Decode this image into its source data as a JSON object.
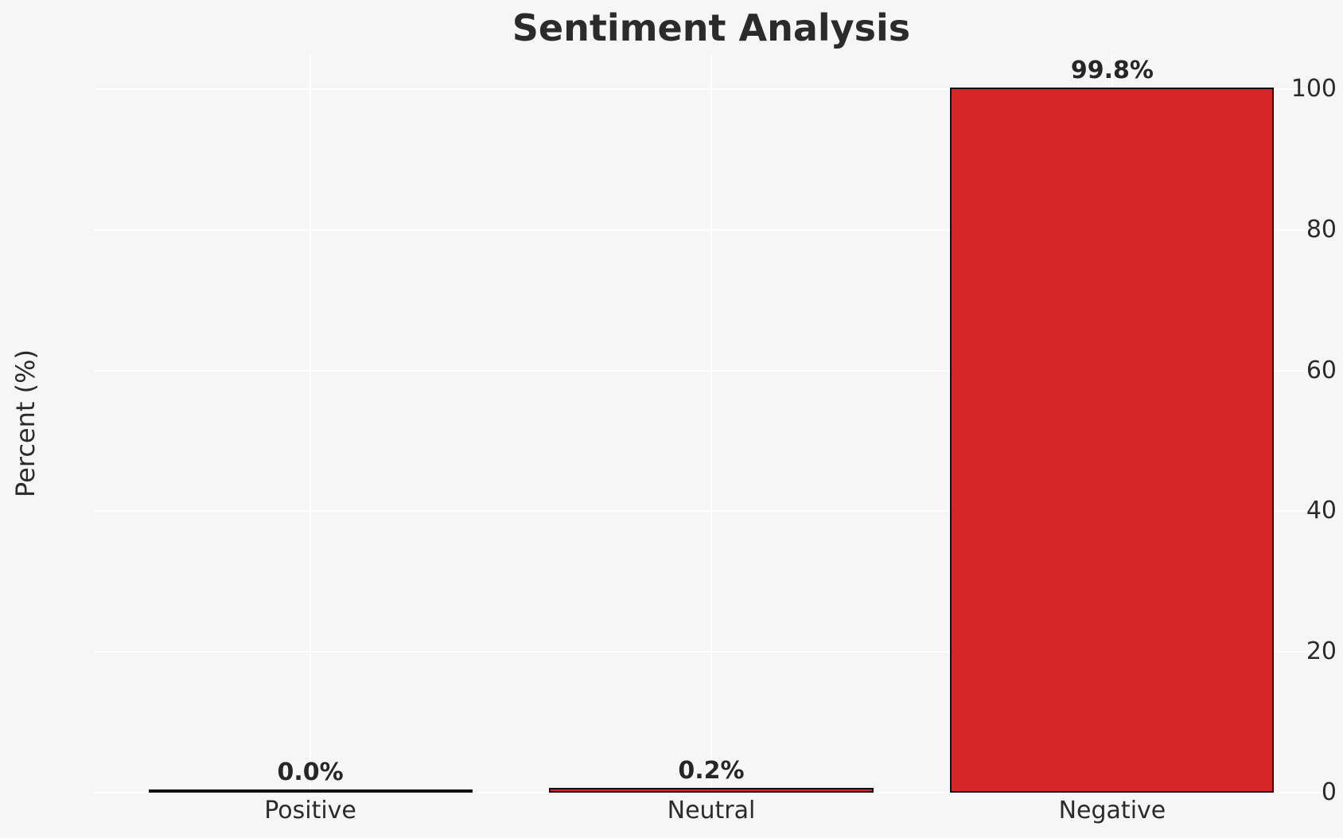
{
  "chart_data": {
    "type": "bar",
    "title": "Sentiment Analysis",
    "xlabel": "",
    "ylabel": "Percent (%)",
    "categories": [
      "Positive",
      "Neutral",
      "Negative"
    ],
    "values": [
      0.0,
      0.2,
      99.8
    ],
    "value_labels": [
      "0.0%",
      "0.2%",
      "99.8%"
    ],
    "yticks": [
      0,
      20,
      40,
      60,
      80,
      100
    ],
    "ytick_labels": [
      "0",
      "20",
      "40",
      "60",
      "80",
      "100"
    ],
    "ylim": [
      0,
      105
    ],
    "grid": true,
    "legend": false,
    "colors": {
      "figure_background": "#f6f6f7",
      "gridline": "#ffffff",
      "bar_fill": "#d62728",
      "bar_edge": "#111111",
      "text": "#2b2b2b"
    }
  }
}
